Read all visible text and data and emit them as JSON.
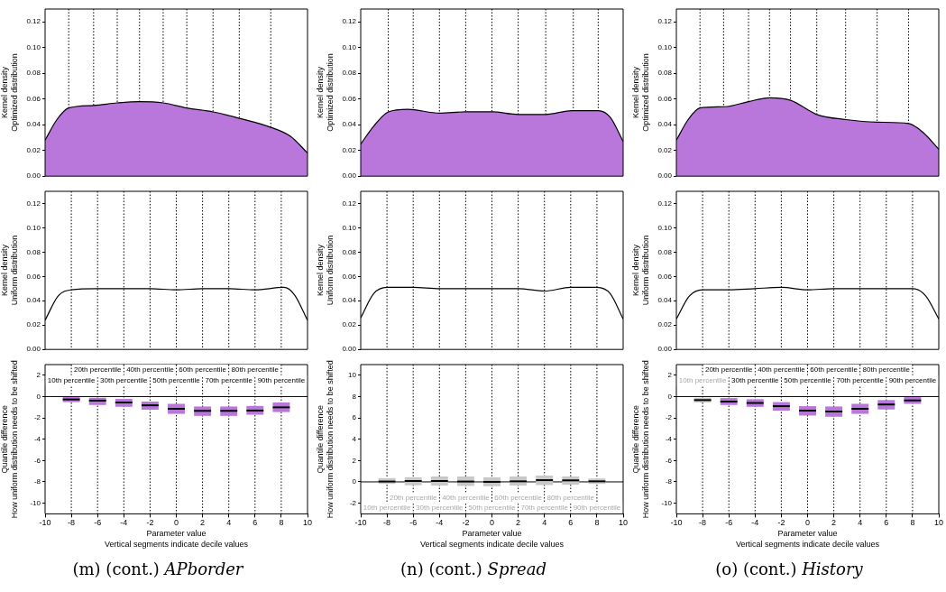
{
  "chart_data": [
    {
      "type": "area",
      "ylabel": "Kernel density\nOptimized distribution",
      "x": [
        -10,
        -9.1,
        -8.2,
        -6.3,
        -4.5,
        -2.8,
        -1,
        0.8,
        2.8,
        4.8,
        7.2,
        8.7,
        10
      ],
      "series": [
        {
          "color": "#b977dc",
          "values": [
            0.028,
            0.044,
            0.053,
            0.055,
            0.057,
            0.058,
            0.057,
            0.053,
            0.05,
            0.045,
            0.038,
            0.031,
            0.018
          ]
        }
      ],
      "xlim": [
        -10,
        10
      ],
      "ylim": [
        0,
        0.13
      ],
      "yticks": [
        {
          "value": 0,
          "label": "0.00"
        },
        {
          "value": 0.02,
          "label": "0.02"
        },
        {
          "value": 0.04,
          "label": "0.04"
        },
        {
          "value": 0.06,
          "label": "0.06"
        },
        {
          "value": 0.08,
          "label": "0.08"
        },
        {
          "value": 0.1,
          "label": "0.10"
        },
        {
          "value": 0.12,
          "label": "0.12"
        }
      ],
      "tick_labels": "y",
      "ref_lines": [
        {
          "axis": "x",
          "value": -8.2,
          "line_style": "dotted"
        },
        {
          "axis": "x",
          "value": -6.3,
          "line_style": "dotted"
        },
        {
          "axis": "x",
          "value": -4.5,
          "line_style": "dotted"
        },
        {
          "axis": "x",
          "value": -2.8,
          "line_style": "dotted"
        },
        {
          "axis": "x",
          "value": -1,
          "line_style": "dotted"
        },
        {
          "axis": "x",
          "value": 0.8,
          "line_style": "dotted"
        },
        {
          "axis": "x",
          "value": 2.8,
          "line_style": "dotted"
        },
        {
          "axis": "x",
          "value": 4.8,
          "line_style": "dotted"
        },
        {
          "axis": "x",
          "value": 7.2,
          "line_style": "dotted"
        }
      ]
    },
    {
      "type": "area",
      "ylabel": "Kernel density\nOptimized distribution",
      "x": [
        -10,
        -9,
        -7.9,
        -6.4,
        -4,
        -2,
        0,
        2,
        4.1,
        6.1,
        8.1,
        9,
        10
      ],
      "series": [
        {
          "color": "#b977dc",
          "values": [
            0.025,
            0.039,
            0.05,
            0.052,
            0.049,
            0.05,
            0.05,
            0.048,
            0.048,
            0.051,
            0.051,
            0.046,
            0.027
          ]
        }
      ],
      "xlim": [
        -10,
        10
      ],
      "ylim": [
        0,
        0.13
      ],
      "yticks": [
        {
          "value": 0,
          "label": "0.00"
        },
        {
          "value": 0.02,
          "label": "0.02"
        },
        {
          "value": 0.04,
          "label": "0.04"
        },
        {
          "value": 0.06,
          "label": "0.06"
        },
        {
          "value": 0.08,
          "label": "0.08"
        },
        {
          "value": 0.1,
          "label": "0.10"
        },
        {
          "value": 0.12,
          "label": "0.12"
        }
      ],
      "tick_labels": "y",
      "ref_lines": [
        {
          "axis": "x",
          "value": -7.9,
          "line_style": "dotted"
        },
        {
          "axis": "x",
          "value": -6,
          "line_style": "dotted"
        },
        {
          "axis": "x",
          "value": -4,
          "line_style": "dotted"
        },
        {
          "axis": "x",
          "value": -2,
          "line_style": "dotted"
        },
        {
          "axis": "x",
          "value": 0,
          "line_style": "dotted"
        },
        {
          "axis": "x",
          "value": 2,
          "line_style": "dotted"
        },
        {
          "axis": "x",
          "value": 4.1,
          "line_style": "dotted"
        },
        {
          "axis": "x",
          "value": 6.2,
          "line_style": "dotted"
        },
        {
          "axis": "x",
          "value": 8.1,
          "line_style": "dotted"
        }
      ]
    },
    {
      "type": "area",
      "ylabel": "Kernel density\nOptimized distribution",
      "x": [
        -10,
        -9.1,
        -8.2,
        -6.3,
        -4.5,
        -2.9,
        -1.3,
        0.7,
        2.9,
        5.3,
        7.7,
        8.8,
        10
      ],
      "series": [
        {
          "color": "#b977dc",
          "values": [
            0.028,
            0.044,
            0.053,
            0.054,
            0.058,
            0.061,
            0.059,
            0.048,
            0.044,
            0.042,
            0.041,
            0.034,
            0.021
          ]
        }
      ],
      "xlim": [
        -10,
        10
      ],
      "ylim": [
        0,
        0.13
      ],
      "yticks": [
        {
          "value": 0,
          "label": "0.00"
        },
        {
          "value": 0.02,
          "label": "0.02"
        },
        {
          "value": 0.04,
          "label": "0.04"
        },
        {
          "value": 0.06,
          "label": "0.06"
        },
        {
          "value": 0.08,
          "label": "0.08"
        },
        {
          "value": 0.1,
          "label": "0.10"
        },
        {
          "value": 0.12,
          "label": "0.12"
        }
      ],
      "tick_labels": "y",
      "ref_lines": [
        {
          "axis": "x",
          "value": -8.2,
          "line_style": "dotted"
        },
        {
          "axis": "x",
          "value": -6.4,
          "line_style": "dotted"
        },
        {
          "axis": "x",
          "value": -4.5,
          "line_style": "dotted"
        },
        {
          "axis": "x",
          "value": -2.9,
          "line_style": "dotted"
        },
        {
          "axis": "x",
          "value": -1.3,
          "line_style": "dotted"
        },
        {
          "axis": "x",
          "value": 0.7,
          "line_style": "dotted"
        },
        {
          "axis": "x",
          "value": 2.9,
          "line_style": "dotted"
        },
        {
          "axis": "x",
          "value": 5.3,
          "line_style": "dotted"
        },
        {
          "axis": "x",
          "value": 7.7,
          "line_style": "dotted"
        }
      ]
    },
    {
      "type": "line",
      "ylabel": "Kernel density\nUniform distribution",
      "x": [
        -10,
        -9,
        -8,
        -6,
        -4,
        -2,
        0,
        2,
        4,
        6,
        8.2,
        9,
        10
      ],
      "series": [
        {
          "color": "#000000",
          "values": [
            0.024,
            0.044,
            0.049,
            0.05,
            0.05,
            0.05,
            0.049,
            0.05,
            0.05,
            0.049,
            0.051,
            0.045,
            0.024
          ]
        }
      ],
      "xlim": [
        -10,
        10
      ],
      "ylim": [
        0,
        0.13
      ],
      "yticks": [
        {
          "value": 0,
          "label": "0.00"
        },
        {
          "value": 0.02,
          "label": "0.02"
        },
        {
          "value": 0.04,
          "label": "0.04"
        },
        {
          "value": 0.06,
          "label": "0.06"
        },
        {
          "value": 0.08,
          "label": "0.08"
        },
        {
          "value": 0.1,
          "label": "0.10"
        },
        {
          "value": 0.12,
          "label": "0.12"
        }
      ],
      "tick_labels": "y",
      "ref_lines": [
        {
          "axis": "x",
          "value": -8,
          "line_style": "dotted"
        },
        {
          "axis": "x",
          "value": -6,
          "line_style": "dotted"
        },
        {
          "axis": "x",
          "value": -4,
          "line_style": "dotted"
        },
        {
          "axis": "x",
          "value": -2,
          "line_style": "dotted"
        },
        {
          "axis": "x",
          "value": 0,
          "line_style": "dotted"
        },
        {
          "axis": "x",
          "value": 2,
          "line_style": "dotted"
        },
        {
          "axis": "x",
          "value": 4,
          "line_style": "dotted"
        },
        {
          "axis": "x",
          "value": 6,
          "line_style": "dotted"
        },
        {
          "axis": "x",
          "value": 8,
          "line_style": "dotted"
        }
      ]
    },
    {
      "type": "line",
      "ylabel": "Kernel density\nUniform distribution",
      "x": [
        -10,
        -9,
        -8,
        -6,
        -4,
        -2,
        0,
        2,
        4,
        6,
        8,
        9,
        10
      ],
      "series": [
        {
          "color": "#000000",
          "values": [
            0.026,
            0.046,
            0.051,
            0.051,
            0.05,
            0.05,
            0.05,
            0.05,
            0.048,
            0.051,
            0.051,
            0.046,
            0.025
          ]
        }
      ],
      "xlim": [
        -10,
        10
      ],
      "ylim": [
        0,
        0.13
      ],
      "yticks": [
        {
          "value": 0,
          "label": "0.00"
        },
        {
          "value": 0.02,
          "label": "0.02"
        },
        {
          "value": 0.04,
          "label": "0.04"
        },
        {
          "value": 0.06,
          "label": "0.06"
        },
        {
          "value": 0.08,
          "label": "0.08"
        },
        {
          "value": 0.1,
          "label": "0.10"
        },
        {
          "value": 0.12,
          "label": "0.12"
        }
      ],
      "tick_labels": "y",
      "ref_lines": [
        {
          "axis": "x",
          "value": -8,
          "line_style": "dotted"
        },
        {
          "axis": "x",
          "value": -6,
          "line_style": "dotted"
        },
        {
          "axis": "x",
          "value": -4,
          "line_style": "dotted"
        },
        {
          "axis": "x",
          "value": -2,
          "line_style": "dotted"
        },
        {
          "axis": "x",
          "value": 0,
          "line_style": "dotted"
        },
        {
          "axis": "x",
          "value": 2,
          "line_style": "dotted"
        },
        {
          "axis": "x",
          "value": 4,
          "line_style": "dotted"
        },
        {
          "axis": "x",
          "value": 6,
          "line_style": "dotted"
        },
        {
          "axis": "x",
          "value": 8,
          "line_style": "dotted"
        }
      ]
    },
    {
      "type": "line",
      "ylabel": "Kernel density\nUniform distribution",
      "x": [
        -10,
        -9,
        -8,
        -6,
        -4,
        -2,
        0,
        2,
        4,
        6,
        8,
        9,
        10
      ],
      "series": [
        {
          "color": "#000000",
          "values": [
            0.025,
            0.044,
            0.049,
            0.049,
            0.05,
            0.051,
            0.049,
            0.05,
            0.05,
            0.05,
            0.05,
            0.044,
            0.025
          ]
        }
      ],
      "xlim": [
        -10,
        10
      ],
      "ylim": [
        0,
        0.13
      ],
      "yticks": [
        {
          "value": 0,
          "label": "0.00"
        },
        {
          "value": 0.02,
          "label": "0.02"
        },
        {
          "value": 0.04,
          "label": "0.04"
        },
        {
          "value": 0.06,
          "label": "0.06"
        },
        {
          "value": 0.08,
          "label": "0.08"
        },
        {
          "value": 0.1,
          "label": "0.10"
        },
        {
          "value": 0.12,
          "label": "0.12"
        }
      ],
      "tick_labels": "y",
      "ref_lines": [
        {
          "axis": "x",
          "value": -8,
          "line_style": "dotted"
        },
        {
          "axis": "x",
          "value": -6,
          "line_style": "dotted"
        },
        {
          "axis": "x",
          "value": -4,
          "line_style": "dotted"
        },
        {
          "axis": "x",
          "value": -2,
          "line_style": "dotted"
        },
        {
          "axis": "x",
          "value": 0,
          "line_style": "dotted"
        },
        {
          "axis": "x",
          "value": 2,
          "line_style": "dotted"
        },
        {
          "axis": "x",
          "value": 4,
          "line_style": "dotted"
        },
        {
          "axis": "x",
          "value": 6,
          "line_style": "dotted"
        },
        {
          "axis": "x",
          "value": 8,
          "line_style": "dotted"
        }
      ]
    },
    {
      "type": "box",
      "title": "(m) (cont.) APborder",
      "xlabel": "Parameter value",
      "ylabel": "Quantile difference\nHow uniform distribution needs to be shifted",
      "x": [
        -8,
        -6,
        -4,
        -2,
        0,
        2,
        4,
        6,
        8
      ],
      "colors": [
        "#b977dc",
        "#b977dc",
        "#b977dc",
        "#b977dc",
        "#b977dc",
        "#b977dc",
        "#b977dc",
        "#b977dc",
        "#b977dc"
      ],
      "boxes": [
        {
          "low": -0.52,
          "q1": -0.52,
          "median": -0.27,
          "q3": -0.05,
          "high": -0.05
        },
        {
          "low": -0.79,
          "q1": -0.79,
          "median": -0.38,
          "q3": -0.11,
          "high": -0.11
        },
        {
          "low": -0.96,
          "q1": -0.96,
          "median": -0.55,
          "q3": -0.22,
          "high": -0.22
        },
        {
          "low": -1.23,
          "q1": -1.23,
          "median": -0.82,
          "q3": -0.47,
          "high": -0.47
        },
        {
          "low": -1.62,
          "q1": -1.62,
          "median": -1.15,
          "q3": -0.68,
          "high": -0.68
        },
        {
          "low": -1.81,
          "q1": -1.81,
          "median": -1.34,
          "q3": -0.93,
          "high": -0.93
        },
        {
          "low": -1.81,
          "q1": -1.81,
          "median": -1.34,
          "q3": -0.93,
          "high": -0.93
        },
        {
          "low": -1.7,
          "q1": -1.7,
          "median": -1.31,
          "q3": -0.88,
          "high": -0.88
        },
        {
          "low": -1.45,
          "q1": -1.45,
          "median": -1.01,
          "q3": -0.55,
          "high": -0.55
        }
      ],
      "xlim": [
        -10,
        10
      ],
      "xticks": [
        -10,
        -8,
        -6,
        -4,
        -2,
        0,
        2,
        4,
        6,
        8,
        10
      ],
      "ylim": [
        -11,
        3
      ],
      "yticks": [
        -10,
        -8,
        -6,
        -4,
        -2,
        0,
        2
      ],
      "ref_lines": [
        {
          "axis": "y",
          "value": 0,
          "line_style": "solid"
        },
        {
          "axis": "x",
          "value": -8,
          "line_style": "dotted"
        },
        {
          "axis": "x",
          "value": -6,
          "line_style": "dotted"
        },
        {
          "axis": "x",
          "value": -4,
          "line_style": "dotted"
        },
        {
          "axis": "x",
          "value": -2,
          "line_style": "dotted"
        },
        {
          "axis": "x",
          "value": 0,
          "line_style": "dotted"
        },
        {
          "axis": "x",
          "value": 2,
          "line_style": "dotted"
        },
        {
          "axis": "x",
          "value": 4,
          "line_style": "dotted"
        },
        {
          "axis": "x",
          "value": 6,
          "line_style": "dotted"
        },
        {
          "axis": "x",
          "value": 8,
          "line_style": "dotted"
        }
      ],
      "annotations": [
        "Vertical segments indicate decile values",
        {
          "text": "10th percentile",
          "x": -8,
          "y": 1.5
        },
        {
          "text": "20th percentile",
          "x": -6,
          "y": 2.5
        },
        {
          "text": "30th percentile",
          "x": -4,
          "y": 1.5
        },
        {
          "text": "40th percentile",
          "x": -2,
          "y": 2.5
        },
        {
          "text": "50th percentile",
          "x": 0,
          "y": 1.5
        },
        {
          "text": "60th percentile",
          "x": 2,
          "y": 2.5
        },
        {
          "text": "70th percentile",
          "x": 4,
          "y": 1.5
        },
        {
          "text": "80th percentile",
          "x": 6,
          "y": 2.5
        },
        {
          "text": "90th percentile",
          "x": 8,
          "y": 1.5
        }
      ]
    },
    {
      "type": "box",
      "title": "(n) (cont.) Spread",
      "xlabel": "Parameter value",
      "ylabel": "Quantile difference\nHow uniform distribution needs to be shifted",
      "x": [
        -8,
        -6,
        -4,
        -2,
        0,
        2,
        4,
        6,
        8
      ],
      "colors": [
        "#c8c8c8",
        "#c8c8c8",
        "#c8c8c8",
        "#c8c8c8",
        "#c8c8c8",
        "#c8c8c8",
        "#c8c8c8",
        "#c8c8c8",
        "#c8c8c8"
      ],
      "boxes": [
        {
          "low": -0.19,
          "q1": -0.19,
          "median": 0.03,
          "q3": 0.35,
          "high": 0.35
        },
        {
          "low": -0.32,
          "q1": -0.32,
          "median": 0.08,
          "q3": 0.43,
          "high": 0.43
        },
        {
          "low": -0.35,
          "q1": -0.35,
          "median": 0.08,
          "q3": 0.51,
          "high": 0.51
        },
        {
          "low": -0.38,
          "q1": -0.38,
          "median": 0.03,
          "q3": 0.51,
          "high": 0.51
        },
        {
          "low": -0.41,
          "q1": -0.41,
          "median": 0,
          "q3": 0.43,
          "high": 0.43
        },
        {
          "low": -0.35,
          "q1": -0.35,
          "median": 0.05,
          "q3": 0.51,
          "high": 0.51
        },
        {
          "low": -0.3,
          "q1": -0.3,
          "median": 0.16,
          "q3": 0.59,
          "high": 0.59
        },
        {
          "low": -0.27,
          "q1": -0.27,
          "median": 0.14,
          "q3": 0.51,
          "high": 0.51
        },
        {
          "low": -0.19,
          "q1": -0.19,
          "median": 0.05,
          "q3": 0.32,
          "high": 0.32
        }
      ],
      "xlim": [
        -10,
        10
      ],
      "xticks": [
        -10,
        -8,
        -6,
        -4,
        -2,
        0,
        2,
        4,
        6,
        8,
        10
      ],
      "ylim": [
        -3,
        11
      ],
      "yticks": [
        -2,
        0,
        2,
        4,
        6,
        8,
        10
      ],
      "ref_lines": [
        {
          "axis": "y",
          "value": 0,
          "line_style": "solid"
        },
        {
          "axis": "x",
          "value": -8,
          "line_style": "dotted"
        },
        {
          "axis": "x",
          "value": -6,
          "line_style": "dotted"
        },
        {
          "axis": "x",
          "value": -4,
          "line_style": "dotted"
        },
        {
          "axis": "x",
          "value": -2,
          "line_style": "dotted"
        },
        {
          "axis": "x",
          "value": 0,
          "line_style": "dotted"
        },
        {
          "axis": "x",
          "value": 2,
          "line_style": "dotted"
        },
        {
          "axis": "x",
          "value": 4,
          "line_style": "dotted"
        },
        {
          "axis": "x",
          "value": 6,
          "line_style": "dotted"
        },
        {
          "axis": "x",
          "value": 8,
          "line_style": "dotted"
        }
      ],
      "annotations": [
        "Vertical segments indicate decile values",
        {
          "text": "10th percentile",
          "x": -8,
          "y": -2.4
        },
        {
          "text": "20th percentile",
          "x": -6,
          "y": -1.5
        },
        {
          "text": "30th percentile",
          "x": -4,
          "y": -2.4
        },
        {
          "text": "40th percentile",
          "x": -2,
          "y": -1.5
        },
        {
          "text": "50th percentile",
          "x": 0,
          "y": -2.4
        },
        {
          "text": "60th percentile",
          "x": 2,
          "y": -1.5
        },
        {
          "text": "70th percentile",
          "x": 4,
          "y": -2.4
        },
        {
          "text": "80th percentile",
          "x": 6,
          "y": -1.5
        },
        {
          "text": "90th percentile",
          "x": 8,
          "y": -2.4
        }
      ]
    },
    {
      "type": "box",
      "title": "(o) (cont.) History",
      "xlabel": "Parameter value",
      "ylabel": "Quantile difference\nHow uniform distribution needs to be shifted",
      "x": [
        -8,
        -6,
        -4,
        -2,
        0,
        2,
        4,
        6,
        8
      ],
      "colors": [
        "#c8c8c8",
        "#b977dc",
        "#b977dc",
        "#b977dc",
        "#b977dc",
        "#b977dc",
        "#b977dc",
        "#b977dc",
        "#b977dc"
      ],
      "boxes": [
        {
          "low": -0.55,
          "q1": -0.55,
          "median": -0.33,
          "q3": -0.11,
          "high": -0.11
        },
        {
          "low": -0.79,
          "q1": -0.79,
          "median": -0.47,
          "q3": -0.14,
          "high": -0.14
        },
        {
          "low": -0.96,
          "q1": -0.96,
          "median": -0.6,
          "q3": -0.25,
          "high": -0.25
        },
        {
          "low": -1.32,
          "q1": -1.32,
          "median": -0.9,
          "q3": -0.52,
          "high": -0.52
        },
        {
          "low": -1.78,
          "q1": -1.78,
          "median": -1.32,
          "q3": -0.9,
          "high": -0.9
        },
        {
          "low": -1.89,
          "q1": -1.89,
          "median": -1.4,
          "q3": -0.93,
          "high": -0.93
        },
        {
          "low": -1.62,
          "q1": -1.62,
          "median": -1.15,
          "q3": -0.68,
          "high": -0.68
        },
        {
          "low": -1.21,
          "q1": -1.21,
          "median": -0.74,
          "q3": -0.33,
          "high": -0.33
        },
        {
          "low": -0.68,
          "q1": -0.68,
          "median": -0.36,
          "q3": -0.05,
          "high": -0.05
        }
      ],
      "xlim": [
        -10,
        10
      ],
      "xticks": [
        -10,
        -8,
        -6,
        -4,
        -2,
        0,
        2,
        4,
        6,
        8,
        10
      ],
      "ylim": [
        -11,
        3
      ],
      "yticks": [
        -10,
        -8,
        -6,
        -4,
        -2,
        0,
        2
      ],
      "ref_lines": [
        {
          "axis": "y",
          "value": 0,
          "line_style": "solid"
        },
        {
          "axis": "x",
          "value": -8,
          "line_style": "dotted"
        },
        {
          "axis": "x",
          "value": -6,
          "line_style": "dotted"
        },
        {
          "axis": "x",
          "value": -4,
          "line_style": "dotted"
        },
        {
          "axis": "x",
          "value": -2,
          "line_style": "dotted"
        },
        {
          "axis": "x",
          "value": 0,
          "line_style": "dotted"
        },
        {
          "axis": "x",
          "value": 2,
          "line_style": "dotted"
        },
        {
          "axis": "x",
          "value": 4,
          "line_style": "dotted"
        },
        {
          "axis": "x",
          "value": 6,
          "line_style": "dotted"
        },
        {
          "axis": "x",
          "value": 8,
          "line_style": "dotted"
        }
      ],
      "annotations": [
        "Vertical segments indicate decile values",
        {
          "text": "10th percentile",
          "x": -8,
          "y": 1.5
        },
        {
          "text": "20th percentile",
          "x": -6,
          "y": 2.5
        },
        {
          "text": "30th percentile",
          "x": -4,
          "y": 1.5
        },
        {
          "text": "40th percentile",
          "x": -2,
          "y": 2.5
        },
        {
          "text": "50th percentile",
          "x": 0,
          "y": 1.5
        },
        {
          "text": "60th percentile",
          "x": 2,
          "y": 2.5
        },
        {
          "text": "70th percentile",
          "x": 4,
          "y": 1.5
        },
        {
          "text": "80th percentile",
          "x": 6,
          "y": 2.5
        },
        {
          "text": "90th percentile",
          "x": 8,
          "y": 1.5
        }
      ]
    }
  ]
}
